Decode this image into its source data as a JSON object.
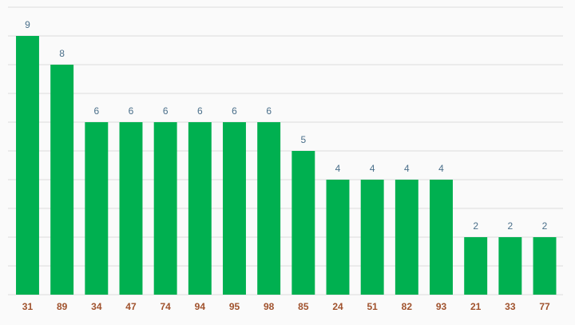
{
  "chart_data": {
    "type": "bar",
    "categories": [
      "31",
      "89",
      "34",
      "47",
      "74",
      "94",
      "95",
      "98",
      "85",
      "24",
      "51",
      "82",
      "93",
      "21",
      "33",
      "77"
    ],
    "values": [
      9,
      8,
      6,
      6,
      6,
      6,
      6,
      6,
      5,
      4,
      4,
      4,
      4,
      2,
      2,
      2
    ],
    "color": "#00b050",
    "ylim": [
      0,
      10
    ],
    "yticks": [
      0,
      1,
      2,
      3,
      4,
      5,
      6,
      7,
      8,
      9,
      10
    ],
    "grid": true
  }
}
